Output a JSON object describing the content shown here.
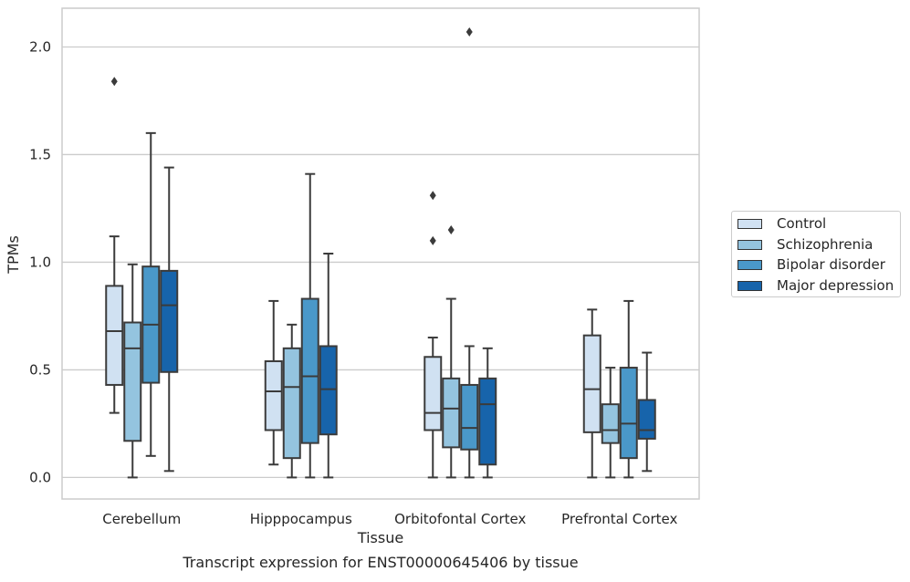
{
  "chart_data": {
    "type": "box",
    "title": "Transcript expression for ENST00000645406 by tissue",
    "xlabel": "Tissue",
    "ylabel": "TPMs",
    "ylim": [
      -0.1,
      2.18
    ],
    "yticks": [
      "0.0",
      "0.5",
      "1.0",
      "1.5",
      "2.0"
    ],
    "ytick_values": [
      0,
      0.5,
      1.0,
      1.5,
      2.0
    ],
    "grid": "horizontal",
    "legend_position": "right",
    "categories": [
      "Cerebellum",
      "Hipppocampus",
      "Orbitofontal Cortex",
      "Prefrontal Cortex"
    ],
    "series": [
      {
        "name": "Control",
        "color": "#d0e1f2",
        "boxes": [
          {
            "whislo": 0.3,
            "q1": 0.43,
            "med": 0.68,
            "q3": 0.89,
            "whishi": 1.12,
            "fliers": [
              1.84
            ]
          },
          {
            "whislo": 0.06,
            "q1": 0.22,
            "med": 0.4,
            "q3": 0.54,
            "whishi": 0.82,
            "fliers": []
          },
          {
            "whislo": 0.0,
            "q1": 0.22,
            "med": 0.3,
            "q3": 0.56,
            "whishi": 0.65,
            "fliers": [
              1.1,
              1.31
            ]
          },
          {
            "whislo": 0.0,
            "q1": 0.21,
            "med": 0.41,
            "q3": 0.66,
            "whishi": 0.78,
            "fliers": []
          }
        ]
      },
      {
        "name": "Schizophrenia",
        "color": "#94c4df",
        "boxes": [
          {
            "whislo": 0.0,
            "q1": 0.17,
            "med": 0.6,
            "q3": 0.72,
            "whishi": 0.99,
            "fliers": []
          },
          {
            "whislo": 0.0,
            "q1": 0.09,
            "med": 0.42,
            "q3": 0.6,
            "whishi": 0.71,
            "fliers": []
          },
          {
            "whislo": 0.0,
            "q1": 0.14,
            "med": 0.32,
            "q3": 0.46,
            "whishi": 0.83,
            "fliers": [
              1.15
            ]
          },
          {
            "whislo": 0.0,
            "q1": 0.16,
            "med": 0.22,
            "q3": 0.34,
            "whishi": 0.51,
            "fliers": []
          }
        ]
      },
      {
        "name": "Bipolar disorder",
        "color": "#4a98c9",
        "boxes": [
          {
            "whislo": 0.1,
            "q1": 0.44,
            "med": 0.71,
            "q3": 0.98,
            "whishi": 1.6,
            "fliers": []
          },
          {
            "whislo": 0.0,
            "q1": 0.16,
            "med": 0.47,
            "q3": 0.83,
            "whishi": 1.41,
            "fliers": []
          },
          {
            "whislo": 0.0,
            "q1": 0.13,
            "med": 0.23,
            "q3": 0.43,
            "whishi": 0.61,
            "fliers": [
              2.07
            ]
          },
          {
            "whislo": 0.0,
            "q1": 0.09,
            "med": 0.25,
            "q3": 0.51,
            "whishi": 0.82,
            "fliers": []
          }
        ]
      },
      {
        "name": "Major depression",
        "color": "#1764ab",
        "boxes": [
          {
            "whislo": 0.03,
            "q1": 0.49,
            "med": 0.8,
            "q3": 0.96,
            "whishi": 1.44,
            "fliers": []
          },
          {
            "whislo": 0.0,
            "q1": 0.2,
            "med": 0.41,
            "q3": 0.61,
            "whishi": 1.04,
            "fliers": []
          },
          {
            "whislo": 0.0,
            "q1": 0.06,
            "med": 0.34,
            "q3": 0.46,
            "whishi": 0.6,
            "fliers": []
          },
          {
            "whislo": 0.03,
            "q1": 0.18,
            "med": 0.22,
            "q3": 0.36,
            "whishi": 0.58,
            "fliers": []
          }
        ]
      }
    ]
  }
}
